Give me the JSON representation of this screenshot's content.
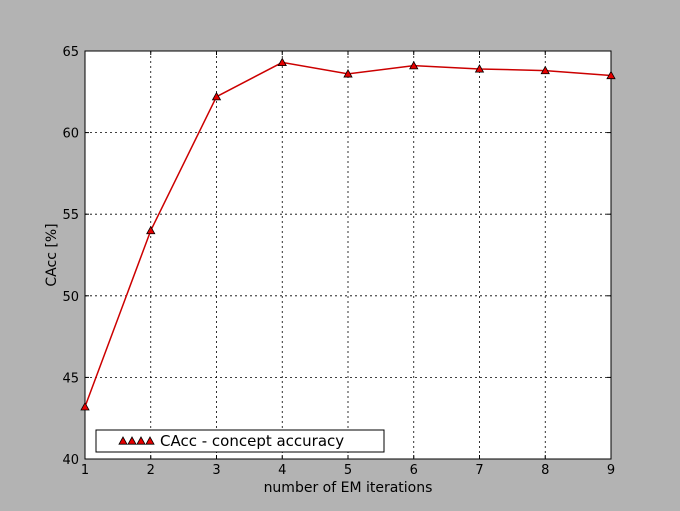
{
  "chart_data": {
    "type": "line",
    "title": "",
    "xlabel": "number of EM iterations",
    "ylabel": "CAcc [%]",
    "xlim": [
      1,
      9
    ],
    "ylim": [
      40,
      65
    ],
    "xticks": [
      1,
      2,
      3,
      4,
      5,
      6,
      7,
      8,
      9
    ],
    "yticks": [
      40,
      45,
      50,
      55,
      60,
      65
    ],
    "grid": true,
    "legend_position": "lower-left",
    "series": [
      {
        "name": "CAcc - concept accuracy",
        "marker": "triangle",
        "color": "#cc0000",
        "marker_fill": "#e60000",
        "x": [
          1,
          2,
          3,
          4,
          5,
          6,
          7,
          8,
          9
        ],
        "y": [
          43.2,
          54.0,
          62.2,
          64.3,
          63.6,
          64.1,
          63.9,
          63.8,
          63.5
        ]
      }
    ]
  },
  "colors": {
    "figure_background": "#b3b3b3",
    "plot_background": "#ffffff",
    "line": "#cc0000"
  }
}
